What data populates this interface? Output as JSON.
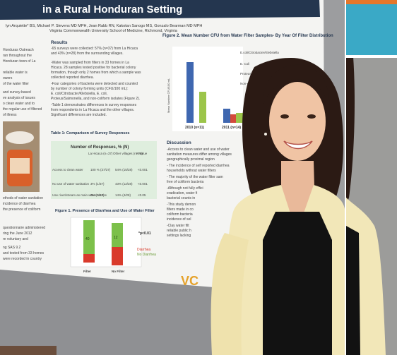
{
  "poster": {
    "title": "in a Rural Honduran Setting",
    "authors": "lyn Arquiette* BS, Michael P. Stevens MD MPH, Jean Rabb RN, Kakotan Sanogo MS, Gonzalo Bearman MD MPH",
    "affiliation": "Virginia Commonwealth University School of Medicine, Richmond, Virginia",
    "results_heading": "Results",
    "results_lines": [
      "-65 surveys were collected: 57% (n=37) from La Hicaca",
      "and 43% (n=28) from the surrounding villages.",
      "-Water was sampled from filters in 33 homes in La",
      "Hicaca. 28 samples tested positive for bacterial colony",
      "formation, though only 2 homes from which a sample was",
      "collected reported diarrhea.",
      "-Four categories of bacteria were detected and counted",
      "by number of colony forming units (CFU/100 mL):",
      "E. coli/Citrobacter/Klebsiella, E. coli,",
      "Proteus/Salmonella, and non-coliform isolates (Figure 2).",
      "-Table 1 demonstrates differences in survey responses",
      "from respondents in La Hicaca and the other villages.",
      "Significant differences are included."
    ],
    "table_title": "Table 1: Comparison of Survey Responses",
    "table_header": "Number of Responses, % (N)",
    "table_cols": [
      "La Hicaca (n=37)",
      "Other villages (n=28)",
      "P-value"
    ],
    "table_rows": [
      {
        "label": "Access to clean water",
        "a": "100 % (37/37)",
        "b": "54% (15/28)",
        "p": "<0.001"
      },
      {
        "label": "No use of water sanitation",
        "a": "3% (1/37)",
        "b": "43% (12/28)",
        "p": "<0.001"
      },
      {
        "label": "Use river/stream as main water source",
        "a": "0% (0/37)",
        "b": "14% (4/28)",
        "p": "<0.05"
      }
    ],
    "figure1_title": "Figure 1. Presence of Diarrhea and Use of Water Filter",
    "figure1_pvalue": "*p<0.01",
    "figure1_legend": [
      "Diarrhea",
      "No Diarrhea"
    ],
    "figure1_bars": [
      "Filter",
      "No Filter"
    ],
    "figure1_values": [
      "40",
      "12"
    ],
    "figure2_title": "Figure 2. Mean Number CFU from Water Filter Samples- By Year Of Filter Distribution",
    "figure2_legend": [
      "E.coli/Citrobacter/Klebsiella",
      "E. Coli",
      "Proteus/Salmonella",
      "Non-coliform"
    ],
    "figure2_ylabel": "Mean Number CFU/100 mL",
    "figure2_x": [
      "2010 (n=11)",
      "2011 (n=14)"
    ],
    "discussion_heading": "Discussion",
    "discussion_lines": [
      "-Access to clean water and use of water",
      "sanitation measures differ among villages",
      "geographically proximal region",
      "- The incidence of self reported diarrhea",
      "households without water filters",
      "- The majority of the water filter sam",
      "free of coliform bacteria",
      "-Although not fully effici",
      "eradication, water fi",
      "bacterial counts in",
      "-This study demon",
      "filters made in co",
      "coliform bacteria",
      "incidence of sel",
      "-Clay water filt",
      "reliable public h",
      "settings lacking"
    ],
    "left_lines": [
      "Honduras Outreach",
      "ran throughout the",
      "Honduran town of La",
      "reliable water is",
      "owers",
      "of the water filter",
      "and survey-based",
      "ve analysis of issues",
      "o clean water and to",
      "the regular use of filtered",
      "of illness"
    ],
    "left_bottom_lines": [
      "ethods of water sanitation",
      "incidence of diarrhea",
      "the presence of coliform",
      "questionnaire administered",
      "ring the June 2012",
      "re voluntary and",
      "ng SAS 9.2",
      "and tested from 33 homes",
      "were recorded in country"
    ],
    "logo_text": "VC"
  },
  "colors": {
    "accent_orange": "#e5772b",
    "accent_blue": "#3aa9c6",
    "poster_green": "#7cc04a",
    "poster_red": "#d93a2b",
    "chart_blue": "#3f67b0"
  }
}
